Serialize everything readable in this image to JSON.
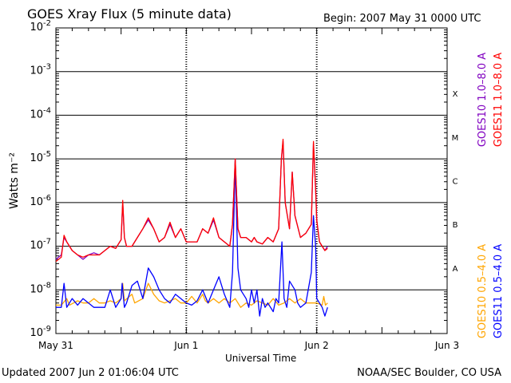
{
  "header": {
    "title": "GOES Xray Flux (5 minute data)",
    "begin": "Begin:  2007 May 31 0000 UTC"
  },
  "footer": {
    "updated": "Updated 2007 Jun  2 01:06:04 UTC",
    "credit": "NOAA/SEC Boulder, CO USA"
  },
  "chart_data": {
    "type": "line",
    "title": "GOES Xray Flux (5 minute data)",
    "xlabel": "Universal Time",
    "ylabel": "Watts m⁻²",
    "y_scale": "log",
    "ylim_exponent": [
      -9,
      -2
    ],
    "xlim_hours": [
      0,
      72
    ],
    "x_ticks": [
      {
        "label": "May 31",
        "hour": 0
      },
      {
        "label": "Jun 1",
        "hour": 24
      },
      {
        "label": "Jun 2",
        "hour": 48
      },
      {
        "label": "Jun 3",
        "hour": 72
      }
    ],
    "y_ticks": [
      {
        "base": "10",
        "exp": "-2",
        "value": -2
      },
      {
        "base": "10",
        "exp": "-3",
        "value": -3
      },
      {
        "base": "10",
        "exp": "-4",
        "value": -4
      },
      {
        "base": "10",
        "exp": "-5",
        "value": -5
      },
      {
        "base": "10",
        "exp": "-6",
        "value": -6
      },
      {
        "base": "10",
        "exp": "-7",
        "value": -7
      },
      {
        "base": "10",
        "exp": "-8",
        "value": -8
      },
      {
        "base": "10",
        "exp": "-9",
        "value": -9
      }
    ],
    "flare_classes": [
      {
        "label": "X",
        "low": -4,
        "high": -3
      },
      {
        "label": "M",
        "low": -5,
        "high": -4
      },
      {
        "label": "C",
        "low": -6,
        "high": -5
      },
      {
        "label": "B",
        "low": -7,
        "high": -6
      },
      {
        "label": "A",
        "low": -8,
        "high": -7
      }
    ],
    "series": [
      {
        "name": "GOES10 0.5–4.0 A",
        "color": "#ffa500",
        "points": [
          [
            0,
            -8.35
          ],
          [
            1,
            -8.35
          ],
          [
            2,
            -8.2
          ],
          [
            2.5,
            -8.35
          ],
          [
            4,
            -8.25
          ],
          [
            5,
            -8.3
          ],
          [
            6,
            -8.3
          ],
          [
            7,
            -8.2
          ],
          [
            8,
            -8.3
          ],
          [
            9,
            -8.3
          ],
          [
            10,
            -8.25
          ],
          [
            11,
            -8.3
          ],
          [
            12,
            -8.2
          ],
          [
            12.3,
            -7.85
          ],
          [
            12.6,
            -8.25
          ],
          [
            14,
            -8.1
          ],
          [
            14.5,
            -8.3
          ],
          [
            16,
            -8.2
          ],
          [
            17,
            -7.85
          ],
          [
            18,
            -8.1
          ],
          [
            19,
            -8.25
          ],
          [
            20,
            -8.3
          ],
          [
            22,
            -8.2
          ],
          [
            23,
            -8.3
          ],
          [
            24,
            -8.3
          ],
          [
            25,
            -8.15
          ],
          [
            26,
            -8.3
          ],
          [
            27,
            -8.1
          ],
          [
            27.5,
            -8.25
          ],
          [
            28,
            -8.3
          ],
          [
            29,
            -8.2
          ],
          [
            30,
            -8.3
          ],
          [
            31,
            -8.2
          ],
          [
            32,
            -8.3
          ],
          [
            33,
            -8.2
          ],
          [
            34,
            -8.4
          ],
          [
            35,
            -8.3
          ],
          [
            36,
            -8.35
          ],
          [
            37,
            -8.25
          ],
          [
            38,
            -8.3
          ],
          [
            39,
            -8.35
          ],
          [
            40,
            -8.2
          ],
          [
            41,
            -8.35
          ],
          [
            42,
            -8.3
          ],
          [
            43,
            -8.2
          ],
          [
            44,
            -8.3
          ],
          [
            45,
            -8.2
          ],
          [
            46,
            -8.3
          ],
          [
            47,
            -8.3
          ],
          [
            48,
            -8.3
          ],
          [
            49,
            -8.35
          ],
          [
            49.3,
            -8.15
          ],
          [
            49.6,
            -8.35
          ],
          [
            50,
            -8.3
          ]
        ]
      },
      {
        "name": "GOES11 0.5–4.0 A",
        "color": "#0000ff",
        "points": [
          [
            0,
            -8.4
          ],
          [
            1,
            -8.4
          ],
          [
            1.5,
            -7.85
          ],
          [
            2,
            -8.4
          ],
          [
            3,
            -8.2
          ],
          [
            4,
            -8.35
          ],
          [
            5,
            -8.2
          ],
          [
            6,
            -8.3
          ],
          [
            7,
            -8.4
          ],
          [
            8,
            -8.4
          ],
          [
            9,
            -8.4
          ],
          [
            10,
            -8.0
          ],
          [
            11,
            -8.4
          ],
          [
            12,
            -8.2
          ],
          [
            12.2,
            -7.85
          ],
          [
            12.6,
            -8.4
          ],
          [
            13,
            -8.3
          ],
          [
            14,
            -7.9
          ],
          [
            15,
            -7.8
          ],
          [
            16,
            -8.2
          ],
          [
            17,
            -7.5
          ],
          [
            18,
            -7.7
          ],
          [
            19,
            -8.0
          ],
          [
            20,
            -8.2
          ],
          [
            21,
            -8.3
          ],
          [
            22,
            -8.1
          ],
          [
            23,
            -8.2
          ],
          [
            24,
            -8.3
          ],
          [
            25,
            -8.35
          ],
          [
            26,
            -8.25
          ],
          [
            27,
            -8.0
          ],
          [
            28,
            -8.3
          ],
          [
            29,
            -8.0
          ],
          [
            30,
            -7.7
          ],
          [
            31,
            -8.1
          ],
          [
            32,
            -8.4
          ],
          [
            32.5,
            -7.6
          ],
          [
            33,
            -5.1
          ],
          [
            33.5,
            -7.5
          ],
          [
            34,
            -8.0
          ],
          [
            35,
            -8.2
          ],
          [
            35.5,
            -8.4
          ],
          [
            36,
            -8.0
          ],
          [
            36.5,
            -8.3
          ],
          [
            37,
            -8.0
          ],
          [
            37.5,
            -8.6
          ],
          [
            38,
            -8.2
          ],
          [
            38.5,
            -8.4
          ],
          [
            39,
            -8.3
          ],
          [
            40,
            -8.5
          ],
          [
            40.5,
            -8.2
          ],
          [
            41,
            -8.3
          ],
          [
            41.6,
            -6.9
          ],
          [
            42,
            -8.2
          ],
          [
            42.5,
            -8.4
          ],
          [
            43,
            -7.8
          ],
          [
            44,
            -8.0
          ],
          [
            44.5,
            -8.3
          ],
          [
            45,
            -8.4
          ],
          [
            46,
            -8.3
          ],
          [
            47,
            -7.6
          ],
          [
            47.4,
            -6.3
          ],
          [
            47.8,
            -7.0
          ],
          [
            48,
            -8.2
          ],
          [
            48.5,
            -8.3
          ],
          [
            49,
            -8.4
          ],
          [
            49.5,
            -8.6
          ],
          [
            50,
            -8.4
          ]
        ]
      },
      {
        "name": "GOES10 1.0–8.0 A",
        "color": "#8000c0",
        "points": [
          [
            0,
            -7.3
          ],
          [
            1,
            -7.2
          ],
          [
            1.5,
            -6.8
          ],
          [
            2,
            -6.9
          ],
          [
            3,
            -7.1
          ],
          [
            4,
            -7.2
          ],
          [
            5,
            -7.3
          ],
          [
            6,
            -7.2
          ],
          [
            7,
            -7.15
          ],
          [
            8,
            -7.2
          ],
          [
            9,
            -7.1
          ],
          [
            10,
            -7.0
          ],
          [
            11,
            -7.05
          ],
          [
            12,
            -6.85
          ],
          [
            12.3,
            -6.0
          ],
          [
            12.6,
            -6.8
          ],
          [
            13,
            -7.0
          ],
          [
            14,
            -7.0
          ],
          [
            15,
            -6.8
          ],
          [
            16,
            -6.6
          ],
          [
            17,
            -6.4
          ],
          [
            18,
            -6.6
          ],
          [
            19,
            -6.9
          ],
          [
            20,
            -6.8
          ],
          [
            21,
            -6.5
          ],
          [
            22,
            -6.8
          ],
          [
            23,
            -6.6
          ],
          [
            24,
            -6.9
          ],
          [
            25,
            -6.9
          ],
          [
            26,
            -6.9
          ],
          [
            27,
            -6.6
          ],
          [
            28,
            -6.7
          ],
          [
            29,
            -6.4
          ],
          [
            30,
            -6.8
          ],
          [
            31,
            -6.9
          ],
          [
            32,
            -7.0
          ],
          [
            32.5,
            -6.5
          ],
          [
            33,
            -5.0
          ],
          [
            33.5,
            -6.6
          ],
          [
            34,
            -6.8
          ],
          [
            35,
            -6.8
          ],
          [
            36,
            -6.9
          ],
          [
            36.5,
            -6.8
          ],
          [
            37,
            -6.9
          ],
          [
            38,
            -6.95
          ],
          [
            39,
            -6.8
          ],
          [
            40,
            -6.9
          ],
          [
            41,
            -6.6
          ],
          [
            41.5,
            -5.0
          ],
          [
            41.8,
            -4.6
          ],
          [
            42.2,
            -6.0
          ],
          [
            43,
            -6.6
          ],
          [
            43.5,
            -5.3
          ],
          [
            44,
            -6.3
          ],
          [
            45,
            -6.8
          ],
          [
            46,
            -6.7
          ],
          [
            47,
            -6.5
          ],
          [
            47.4,
            -4.65
          ],
          [
            47.8,
            -5.7
          ],
          [
            48,
            -6.4
          ],
          [
            48.5,
            -6.9
          ],
          [
            49,
            -7.0
          ],
          [
            49.5,
            -7.1
          ],
          [
            50,
            -7.0
          ]
        ]
      },
      {
        "name": "GOES11 1.0–8.0 A",
        "color": "#ff0000",
        "points": [
          [
            0,
            -7.35
          ],
          [
            1,
            -7.25
          ],
          [
            1.5,
            -6.75
          ],
          [
            2,
            -6.9
          ],
          [
            3,
            -7.1
          ],
          [
            4,
            -7.2
          ],
          [
            5,
            -7.25
          ],
          [
            6,
            -7.2
          ],
          [
            7,
            -7.2
          ],
          [
            8,
            -7.2
          ],
          [
            9,
            -7.1
          ],
          [
            10,
            -7.0
          ],
          [
            11,
            -7.05
          ],
          [
            12,
            -6.85
          ],
          [
            12.3,
            -5.95
          ],
          [
            12.6,
            -6.8
          ],
          [
            13,
            -7.0
          ],
          [
            14,
            -7.0
          ],
          [
            15,
            -6.8
          ],
          [
            16,
            -6.6
          ],
          [
            17,
            -6.35
          ],
          [
            18,
            -6.6
          ],
          [
            19,
            -6.9
          ],
          [
            20,
            -6.8
          ],
          [
            21,
            -6.45
          ],
          [
            22,
            -6.8
          ],
          [
            23,
            -6.6
          ],
          [
            24,
            -6.9
          ],
          [
            25,
            -6.9
          ],
          [
            26,
            -6.9
          ],
          [
            27,
            -6.6
          ],
          [
            28,
            -6.7
          ],
          [
            29,
            -6.35
          ],
          [
            30,
            -6.8
          ],
          [
            31,
            -6.9
          ],
          [
            32,
            -7.0
          ],
          [
            32.5,
            -6.5
          ],
          [
            33,
            -5.0
          ],
          [
            33.5,
            -6.6
          ],
          [
            34,
            -6.8
          ],
          [
            35,
            -6.8
          ],
          [
            36,
            -6.9
          ],
          [
            36.5,
            -6.8
          ],
          [
            37,
            -6.9
          ],
          [
            38,
            -6.95
          ],
          [
            39,
            -6.8
          ],
          [
            40,
            -6.9
          ],
          [
            41,
            -6.6
          ],
          [
            41.5,
            -5.0
          ],
          [
            41.8,
            -4.55
          ],
          [
            42.2,
            -6.0
          ],
          [
            43,
            -6.6
          ],
          [
            43.5,
            -5.3
          ],
          [
            44,
            -6.3
          ],
          [
            45,
            -6.8
          ],
          [
            46,
            -6.7
          ],
          [
            47,
            -6.5
          ],
          [
            47.4,
            -4.6
          ],
          [
            47.8,
            -5.7
          ],
          [
            48,
            -6.4
          ],
          [
            48.5,
            -6.9
          ],
          [
            49,
            -7.0
          ],
          [
            49.5,
            -7.1
          ],
          [
            50,
            -7.05
          ]
        ]
      }
    ]
  }
}
